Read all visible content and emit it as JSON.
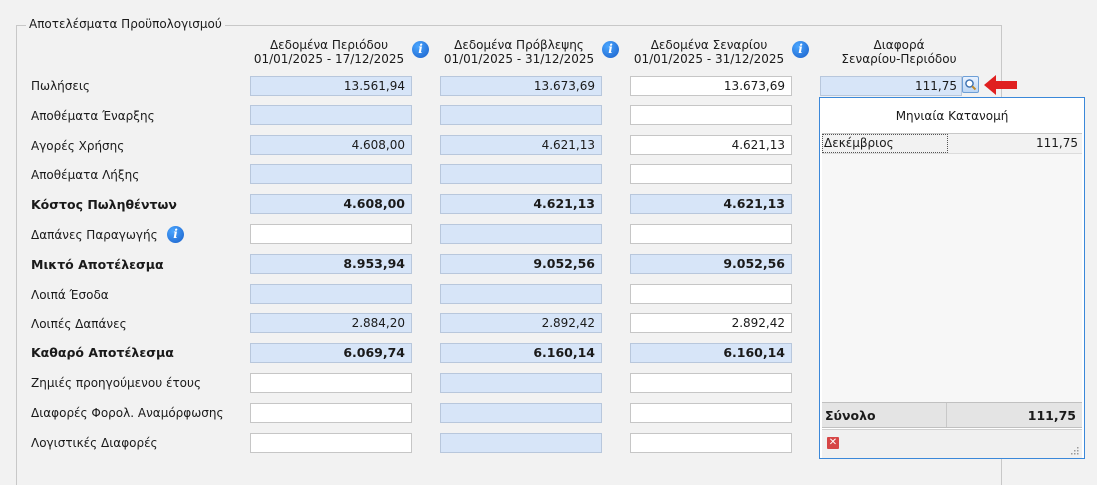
{
  "group_title": "Αποτελέσματα Προϋπολογισμού",
  "columns": [
    {
      "line1": "Δεδομένα Περιόδου",
      "line2": "01/01/2025 - 17/12/2025",
      "icon": "info-icon"
    },
    {
      "line1": "Δεδομένα Πρόβλεψης",
      "line2": "01/01/2025 - 31/12/2025",
      "icon": "info-icon"
    },
    {
      "line1": "Δεδομένα Σεναρίου",
      "line2": "01/01/2025 - 31/12/2025",
      "icon": "info-icon"
    },
    {
      "line1": "Διαφορά",
      "line2": "Σεναρίου-Περιόδου"
    }
  ],
  "rows": [
    {
      "label": "Πωλήσεις",
      "bold": false,
      "values": [
        "13.561,94",
        "13.673,69",
        "13.673,69"
      ],
      "diff": "111,75"
    },
    {
      "label": "Αποθέματα Έναρξης",
      "bold": false,
      "values": [
        "",
        "",
        ""
      ]
    },
    {
      "label": "Αγορές Χρήσης",
      "bold": false,
      "values": [
        "4.608,00",
        "4.621,13",
        "4.621,13"
      ]
    },
    {
      "label": "Αποθέματα Λήξης",
      "bold": false,
      "values": [
        "",
        "",
        ""
      ]
    },
    {
      "label": "Κόστος Πωληθέντων",
      "bold": true,
      "values": [
        "4.608,00",
        "4.621,13",
        "4.621,13"
      ]
    },
    {
      "label": "Δαπάνες Παραγωγής",
      "bold": false,
      "values": [
        "",
        "",
        ""
      ],
      "icon": "info-icon"
    },
    {
      "label": "Μικτό Αποτέλεσμα",
      "bold": true,
      "values": [
        "8.953,94",
        "9.052,56",
        "9.052,56"
      ]
    },
    {
      "label": "Λοιπά Έσοδα",
      "bold": false,
      "values": [
        "",
        "",
        ""
      ]
    },
    {
      "label": "Λοιπές Δαπάνες",
      "bold": false,
      "values": [
        "2.884,20",
        "2.892,42",
        "2.892,42"
      ]
    },
    {
      "label": "Καθαρό Αποτέλεσμα",
      "bold": true,
      "values": [
        "6.069,74",
        "6.160,14",
        "6.160,14"
      ]
    },
    {
      "label": "Ζημιές προηγούμενου έτους",
      "bold": false,
      "values": [
        "",
        "",
        ""
      ]
    },
    {
      "label": "Διαφορές Φορολ. Αναμόρφωσης",
      "bold": false,
      "values": [
        "",
        "",
        ""
      ]
    },
    {
      "label": "Λογιστικές Διαφορές",
      "bold": false,
      "values": [
        "",
        "",
        ""
      ]
    }
  ],
  "popup": {
    "title": "Μηνιαία Κατανομή",
    "items": [
      {
        "month": "Δεκέμβριος",
        "value": "111,75"
      }
    ],
    "total_label": "Σύνολο",
    "total_value": "111,75"
  },
  "colors": {
    "accent": "#3b88d9",
    "cell_blue": "#d7e5f8",
    "arrow": "#e02020"
  }
}
